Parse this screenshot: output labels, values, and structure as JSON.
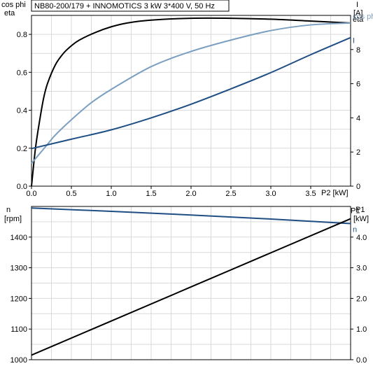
{
  "title": "NB80-200/179 + INNOMOTICS   3 kW   3*400 V, 50 Hz",
  "chart_data": [
    {
      "type": "line",
      "x_label": "P2 [kW]",
      "x_ticks": [
        "0.0",
        "0.5",
        "1.0",
        "1.5",
        "2.0",
        "2.5",
        "3.0",
        "3.5"
      ],
      "xlim": [
        0,
        4.0
      ],
      "left_axis": {
        "label_1": "cos phi",
        "label_2": "eta",
        "ylim": [
          0,
          0.9
        ],
        "ticks": [
          "0.0",
          "0.2",
          "0.4",
          "0.6",
          "0.8"
        ]
      },
      "right_axis": {
        "label_1": "I",
        "label_2": "[A]",
        "ylim": [
          0,
          10
        ],
        "ticks": [
          "0",
          "2",
          "4",
          "6",
          "8"
        ]
      },
      "grid": true,
      "series": [
        {
          "name": "eta",
          "axis": "left",
          "color": "#000000",
          "x": [
            0.0,
            0.05,
            0.1,
            0.15,
            0.2,
            0.3,
            0.4,
            0.5,
            0.6,
            0.8,
            1.0,
            1.2,
            1.5,
            2.0,
            2.5,
            3.0,
            3.5,
            4.0
          ],
          "y": [
            0.0,
            0.2,
            0.34,
            0.46,
            0.54,
            0.64,
            0.7,
            0.74,
            0.77,
            0.81,
            0.84,
            0.86,
            0.875,
            0.885,
            0.885,
            0.88,
            0.87,
            0.86
          ]
        },
        {
          "name": "cos phi",
          "axis": "left",
          "color": "#7b9fc1",
          "x": [
            0.0,
            0.1,
            0.2,
            0.3,
            0.5,
            0.75,
            1.0,
            1.5,
            2.0,
            2.5,
            3.0,
            3.5,
            4.0
          ],
          "y": [
            0.12,
            0.17,
            0.22,
            0.27,
            0.35,
            0.44,
            0.51,
            0.63,
            0.71,
            0.77,
            0.82,
            0.85,
            0.86
          ]
        },
        {
          "name": "I",
          "axis": "right",
          "color": "#1f4e85",
          "x": [
            0.0,
            0.5,
            1.0,
            1.5,
            2.0,
            2.5,
            3.0,
            3.5,
            4.0
          ],
          "y": [
            2.2,
            2.75,
            3.3,
            4.0,
            4.8,
            5.7,
            6.65,
            7.7,
            8.7
          ]
        }
      ]
    },
    {
      "type": "line",
      "xlim": [
        0,
        4.0
      ],
      "left_axis": {
        "label_1": "n",
        "label_2": "[rpm]",
        "ylim": [
          1000,
          1500
        ],
        "ticks": [
          "1000",
          "1100",
          "1200",
          "1300",
          "1400"
        ]
      },
      "right_axis": {
        "label_1": "P1",
        "label_2": "[kW]",
        "ylim": [
          0,
          5
        ],
        "ticks": [
          "0.0",
          "1.0",
          "2.0",
          "3.0",
          "4.0"
        ]
      },
      "grid": true,
      "series": [
        {
          "name": "n",
          "axis": "left",
          "color": "#1f4e85",
          "x": [
            0.0,
            1.0,
            2.0,
            3.0,
            4.0
          ],
          "y": [
            1495,
            1484,
            1472,
            1459,
            1444
          ]
        },
        {
          "name": "P1",
          "axis": "right",
          "color": "#000000",
          "x": [
            0.0,
            4.0
          ],
          "y": [
            0.15,
            4.6
          ]
        }
      ]
    }
  ]
}
